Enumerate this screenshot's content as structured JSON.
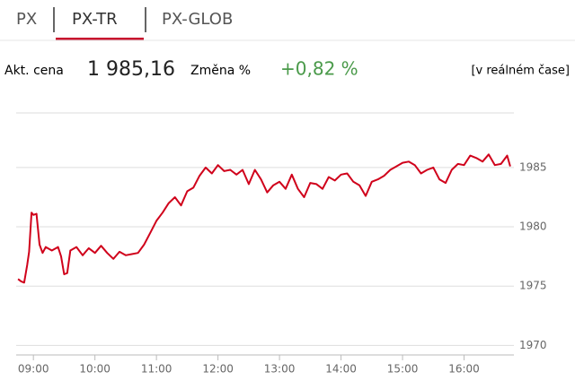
{
  "tabs": [
    "PX",
    "PX-TR",
    "PX-GLOB"
  ],
  "quote": {
    "price_label": "Akt. cena",
    "price": "1 985,16",
    "change_label": "Změna %",
    "change": "+0,82 %",
    "realtime": "[v reálném čase]"
  },
  "chart_data": {
    "type": "line",
    "xlim": [
      8.72,
      16.81
    ],
    "ylim": [
      1969.2,
      1989.6
    ],
    "xticks": [
      {
        "value": 9,
        "label": "09:00"
      },
      {
        "value": 10,
        "label": "10:00"
      },
      {
        "value": 11,
        "label": "11:00"
      },
      {
        "value": 12,
        "label": "12:00"
      },
      {
        "value": 13,
        "label": "13:00"
      },
      {
        "value": 14,
        "label": "14:00"
      },
      {
        "value": 15,
        "label": "15:00"
      },
      {
        "value": 16,
        "label": "16:00"
      }
    ],
    "yticks": [
      1970,
      1975,
      1980,
      1985
    ],
    "grid": true,
    "series": [
      {
        "color": "#d0021b",
        "x": [
          8.75,
          8.8,
          8.85,
          8.9,
          8.93,
          8.97,
          9.0,
          9.05,
          9.1,
          9.15,
          9.2,
          9.3,
          9.4,
          9.45,
          9.5,
          9.55,
          9.6,
          9.7,
          9.8,
          9.9,
          10.0,
          10.1,
          10.2,
          10.3,
          10.4,
          10.5,
          10.6,
          10.7,
          10.8,
          10.9,
          11.0,
          11.1,
          11.2,
          11.3,
          11.4,
          11.5,
          11.6,
          11.7,
          11.8,
          11.9,
          12.0,
          12.1,
          12.2,
          12.3,
          12.4,
          12.5,
          12.6,
          12.7,
          12.8,
          12.9,
          13.0,
          13.1,
          13.2,
          13.3,
          13.4,
          13.5,
          13.6,
          13.7,
          13.8,
          13.9,
          14.0,
          14.1,
          14.2,
          14.3,
          14.4,
          14.5,
          14.6,
          14.7,
          14.8,
          14.9,
          15.0,
          15.1,
          15.2,
          15.3,
          15.4,
          15.5,
          15.6,
          15.7,
          15.8,
          15.9,
          16.0,
          16.1,
          16.2,
          16.3,
          16.4,
          16.5,
          16.6,
          16.7,
          16.75
        ],
        "values": [
          1975.6,
          1975.4,
          1975.3,
          1976.8,
          1977.9,
          1981.2,
          1981.0,
          1981.1,
          1978.5,
          1977.8,
          1978.3,
          1978.0,
          1978.3,
          1977.5,
          1976.0,
          1976.1,
          1978.0,
          1978.3,
          1977.6,
          1978.2,
          1977.8,
          1978.4,
          1977.8,
          1977.3,
          1977.9,
          1977.6,
          1977.7,
          1977.8,
          1978.5,
          1979.5,
          1980.5,
          1981.2,
          1982.0,
          1982.5,
          1981.8,
          1983.0,
          1983.3,
          1984.3,
          1985.0,
          1984.5,
          1985.2,
          1984.7,
          1984.8,
          1984.4,
          1984.8,
          1983.6,
          1984.8,
          1984.0,
          1982.9,
          1983.5,
          1983.8,
          1983.2,
          1984.4,
          1983.2,
          1982.5,
          1983.7,
          1983.6,
          1983.2,
          1984.2,
          1983.9,
          1984.4,
          1984.5,
          1983.8,
          1983.5,
          1982.6,
          1983.8,
          1984.0,
          1984.3,
          1984.8,
          1985.1,
          1985.4,
          1985.5,
          1985.2,
          1984.5,
          1984.8,
          1985.0,
          1984.0,
          1983.7,
          1984.8,
          1985.3,
          1985.2,
          1986.0,
          1985.8,
          1985.5,
          1986.1,
          1985.2,
          1985.3,
          1986.0,
          1985.1
        ]
      }
    ]
  }
}
